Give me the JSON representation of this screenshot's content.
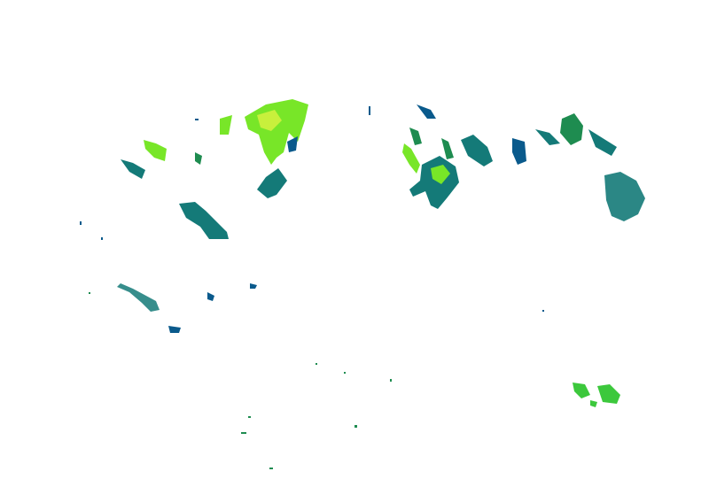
{
  "layer": {
    "type": "precipitation-radar-overlay",
    "palette": {
      "light": "#0a5a8c",
      "light_moderate": "#147a78",
      "moderate": "#1e8c50",
      "moderate_heavy": "#3cc83c",
      "heavy": "#78e628",
      "very_heavy": "#c8f03c"
    }
  }
}
